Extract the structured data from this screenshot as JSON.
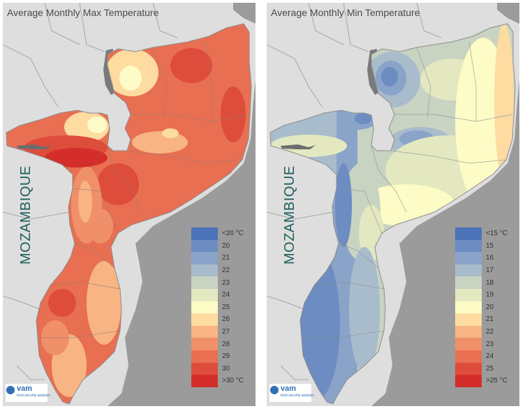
{
  "panels": [
    {
      "title": "Average Monthly Max Temperature",
      "country_label": "MOZAMBIQUE",
      "legend": [
        {
          "label": "<20 °C",
          "color": "#4a73b8"
        },
        {
          "label": "20",
          "color": "#6c8cc2"
        },
        {
          "label": "21",
          "color": "#8aa3c8"
        },
        {
          "label": "22",
          "color": "#a9bccc"
        },
        {
          "label": "23",
          "color": "#c8d3c2"
        },
        {
          "label": "24",
          "color": "#e3e8c0"
        },
        {
          "label": "25",
          "color": "#fdfbc6"
        },
        {
          "label": "26",
          "color": "#fddba1"
        },
        {
          "label": "27",
          "color": "#f8b483"
        },
        {
          "label": "28",
          "color": "#f0906a"
        },
        {
          "label": "29",
          "color": "#e86f52"
        },
        {
          "label": "30",
          "color": "#de4c3c"
        },
        {
          "label": ">30 °C",
          "color": "#d42e2b"
        }
      ],
      "logo": {
        "word": "vam",
        "sub": "food security analysis"
      }
    },
    {
      "title": "Average Monthly Min Temperature",
      "country_label": "MOZAMBIQUE",
      "legend": [
        {
          "label": "<15 °C",
          "color": "#4a73b8"
        },
        {
          "label": "15",
          "color": "#6c8cc2"
        },
        {
          "label": "16",
          "color": "#8aa3c8"
        },
        {
          "label": "17",
          "color": "#a9bccc"
        },
        {
          "label": "18",
          "color": "#c8d3c2"
        },
        {
          "label": "19",
          "color": "#e3e8c0"
        },
        {
          "label": "20",
          "color": "#fdfbc6"
        },
        {
          "label": "21",
          "color": "#fddba1"
        },
        {
          "label": "22",
          "color": "#f8b483"
        },
        {
          "label": "23",
          "color": "#f0906a"
        },
        {
          "label": "24",
          "color": "#e86f52"
        },
        {
          "label": "25",
          "color": "#de4c3c"
        },
        {
          "label": ">25 °C",
          "color": "#d42e2b"
        }
      ],
      "logo": {
        "word": "vam",
        "sub": "food security analysis"
      }
    }
  ],
  "colors": {
    "sea": "#9b9b9b",
    "land": "#dedede",
    "lake": "#7a7a7a",
    "borders": "#9a9a9a",
    "country_label": "#1f5f5a",
    "logo": "#2f6fb3"
  }
}
